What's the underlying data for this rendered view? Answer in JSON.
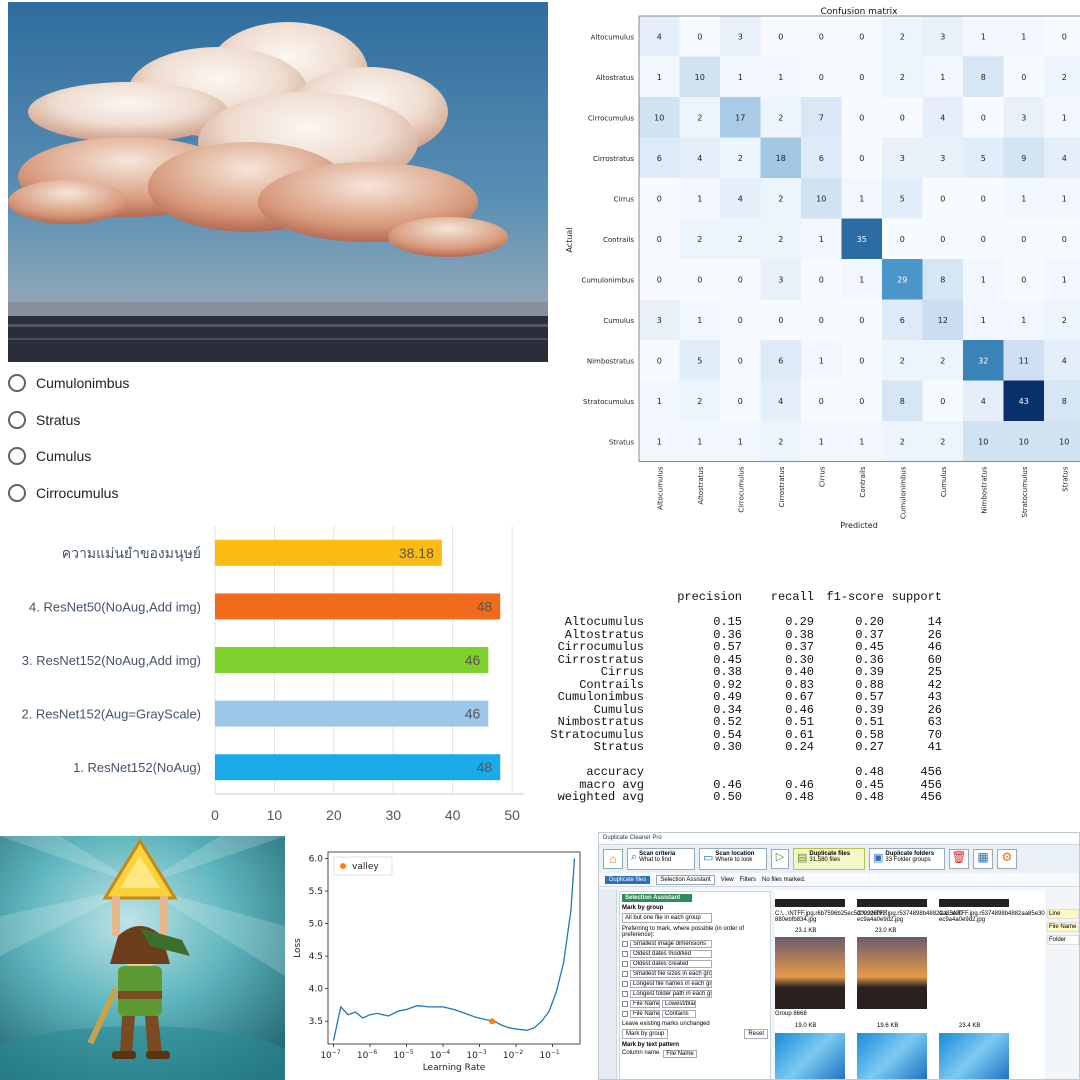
{
  "quiz": {
    "options": [
      "Cumulonimbus",
      "Stratus",
      "Cumulus",
      "Cirrocumulus"
    ]
  },
  "confusion_matrix": {
    "title": "Confusion matrix",
    "xlabel": "Predicted",
    "ylabel": "Actual",
    "classes": [
      "Altocumulus",
      "Altostratus",
      "Cirrocumulus",
      "Cirrostratus",
      "Cirrus",
      "Contrails",
      "Cumulonimbus",
      "Cumulus",
      "Nimbostratus",
      "Stratocumulus",
      "Stratus"
    ],
    "matrix": [
      [
        4,
        0,
        3,
        0,
        0,
        0,
        2,
        3,
        1,
        1,
        0
      ],
      [
        1,
        10,
        1,
        1,
        0,
        0,
        2,
        1,
        8,
        0,
        2
      ],
      [
        10,
        2,
        17,
        2,
        7,
        0,
        0,
        4,
        0,
        3,
        1
      ],
      [
        6,
        4,
        2,
        18,
        6,
        0,
        3,
        3,
        5,
        9,
        4
      ],
      [
        0,
        1,
        4,
        2,
        10,
        1,
        5,
        0,
        0,
        1,
        1
      ],
      [
        0,
        2,
        2,
        2,
        1,
        35,
        0,
        0,
        0,
        0,
        0
      ],
      [
        0,
        0,
        0,
        3,
        0,
        1,
        29,
        8,
        1,
        0,
        1
      ],
      [
        3,
        1,
        0,
        0,
        0,
        0,
        6,
        12,
        1,
        1,
        2
      ],
      [
        0,
        5,
        0,
        6,
        1,
        0,
        2,
        2,
        32,
        11,
        4
      ],
      [
        1,
        2,
        0,
        4,
        0,
        0,
        8,
        0,
        4,
        43,
        8
      ],
      [
        1,
        1,
        1,
        2,
        1,
        1,
        2,
        2,
        10,
        10,
        10
      ]
    ]
  },
  "accuracy_chart": {
    "categories": [
      "ความแม่นยำของมนุษย์",
      "4. ResNet50(NoAug,Add img)",
      "3. ResNet152(NoAug,Add img)",
      "2. ResNet152(Aug=GrayScale)",
      "1. ResNet152(NoAug)"
    ],
    "values": [
      38.18,
      48,
      46,
      46,
      48
    ],
    "value_labels": [
      "38.18",
      "48",
      "46",
      "46",
      "48"
    ],
    "colors": [
      "#fbbb12",
      "#f26b1d",
      "#7ed12c",
      "#9dc7ea",
      "#1aaaea"
    ],
    "ticks": [
      "0",
      "10",
      "20",
      "30",
      "40",
      "50"
    ],
    "xlim": [
      0,
      52
    ]
  },
  "report": {
    "header": [
      "precision",
      "recall",
      "f1-score",
      "support"
    ],
    "rows": [
      [
        "Altocumulus",
        "0.15",
        "0.29",
        "0.20",
        "14"
      ],
      [
        "Altostratus",
        "0.36",
        "0.38",
        "0.37",
        "26"
      ],
      [
        "Cirrocumulus",
        "0.57",
        "0.37",
        "0.45",
        "46"
      ],
      [
        "Cirrostratus",
        "0.45",
        "0.30",
        "0.36",
        "60"
      ],
      [
        "Cirrus",
        "0.38",
        "0.40",
        "0.39",
        "25"
      ],
      [
        "Contrails",
        "0.92",
        "0.83",
        "0.88",
        "42"
      ],
      [
        "Cumulonimbus",
        "0.49",
        "0.67",
        "0.57",
        "43"
      ],
      [
        "Cumulus",
        "0.34",
        "0.46",
        "0.39",
        "26"
      ],
      [
        "Nimbostratus",
        "0.52",
        "0.51",
        "0.51",
        "63"
      ],
      [
        "Stratocumulus",
        "0.54",
        "0.61",
        "0.58",
        "70"
      ],
      [
        "Stratus",
        "0.30",
        "0.24",
        "0.27",
        "41"
      ]
    ],
    "summary": [
      [
        "accuracy",
        "",
        "",
        "0.48",
        "456"
      ],
      [
        "macro avg",
        "0.46",
        "0.46",
        "0.45",
        "456"
      ],
      [
        "weighted avg",
        "0.50",
        "0.48",
        "0.48",
        "456"
      ]
    ]
  },
  "lr_chart": {
    "legend": "valley",
    "xlabel": "Learning Rate",
    "ylabel": "Loss",
    "yticks": [
      "3.5",
      "4.0",
      "4.5",
      "5.0",
      "5.5",
      "6.0"
    ],
    "xticks": [
      "-7",
      "-6",
      "-5",
      "-4",
      "-3",
      "-2",
      "-1"
    ],
    "tick_base": "10",
    "curve": [
      [
        -7.0,
        3.2
      ],
      [
        -6.8,
        3.72
      ],
      [
        -6.6,
        3.6
      ],
      [
        -6.4,
        3.64
      ],
      [
        -6.2,
        3.55
      ],
      [
        -6.0,
        3.6
      ],
      [
        -5.8,
        3.62
      ],
      [
        -5.5,
        3.58
      ],
      [
        -5.2,
        3.66
      ],
      [
        -5.0,
        3.68
      ],
      [
        -4.7,
        3.74
      ],
      [
        -4.4,
        3.72
      ],
      [
        -4.0,
        3.72
      ],
      [
        -3.7,
        3.68
      ],
      [
        -3.4,
        3.62
      ],
      [
        -3.1,
        3.56
      ],
      [
        -2.8,
        3.52
      ],
      [
        -2.6,
        3.5
      ],
      [
        -2.4,
        3.44
      ],
      [
        -2.2,
        3.4
      ],
      [
        -2.0,
        3.38
      ],
      [
        -1.7,
        3.36
      ],
      [
        -1.5,
        3.4
      ],
      [
        -1.3,
        3.5
      ],
      [
        -1.1,
        3.65
      ],
      [
        -0.9,
        3.95
      ],
      [
        -0.7,
        4.4
      ],
      [
        -0.5,
        5.2
      ],
      [
        -0.4,
        6.0
      ]
    ],
    "valley": [
      -2.66,
      3.5
    ],
    "ylim": [
      3.15,
      6.1
    ],
    "xlim": [
      -7.15,
      -0.25
    ]
  },
  "duplicate_cleaner": {
    "title": "Duplicate Cleaner Pro",
    "toolbar": [
      {
        "label": "Scan criteria",
        "sub": "What to find"
      },
      {
        "label": "Scan location",
        "sub": "Where to look"
      },
      {
        "label": "Duplicate files",
        "sub": "31,580 files"
      },
      {
        "label": "Duplicate folders",
        "sub": "33 Folder groups"
      }
    ],
    "tab_active": "Duplicate files",
    "selection_assistant_btn": "Selection Assistant",
    "view_label": "View",
    "filters_label": "Filters",
    "no_files_marked": "No files marked.",
    "panel_title": "Selection Assistant",
    "mark_by_group": "Mark by group",
    "mode": "All but one file in each group",
    "preferring": "Preferring to mark, where possible (in order of preference):",
    "criteria": [
      "Smallest image dimensions",
      "Oldest dates modified",
      "Oldest dates created",
      "Smallest file sizes in each group",
      "Longest file names in each group",
      "Longest folder path in each group",
      "File Name",
      "File Name"
    ],
    "cond_a": "Lowest/blank",
    "cond_b": "Contains",
    "leave_existing": "Leave existing marks unchanged",
    "mark_by_group_btn": "Mark by group",
    "reset": "Reset",
    "mark_by_text": "Mark by text pattern",
    "column_name": "Column name",
    "column_value": "File Name",
    "group_label": "Group 8668",
    "file_names": [
      "C:\\...\\NTFF.jpg.r6b7596b25ec5d09926f91f 880ebfb834.jpg",
      "C:\\...\\NTFF.jpg.r5374898b4882aa85e30 ec9a4a0e9d2.jpg",
      "C:\\...\\NTFF.jpg.r5374898b4882aa85e30 ec9a4a0e9d2.jpg"
    ],
    "size_labels": [
      "23.1 KB",
      "23.0 KB",
      "19.0 KB",
      "19.6 KB",
      "23.4 KB"
    ],
    "side_labels": [
      "Line",
      "File Name",
      "Folder"
    ]
  }
}
